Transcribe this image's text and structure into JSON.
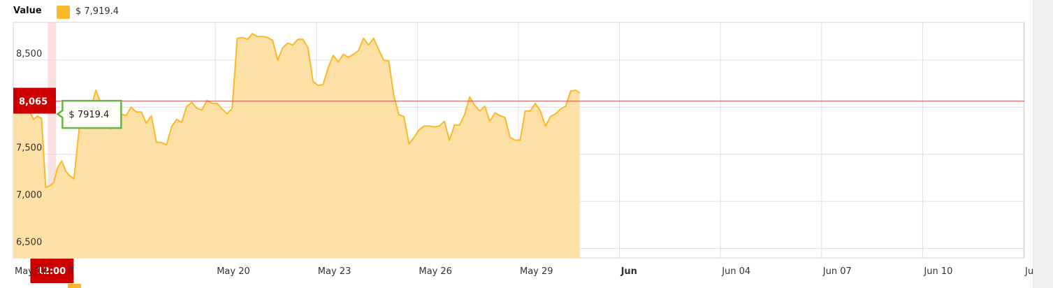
{
  "legend": {
    "title": "Value",
    "value_text": "$ 7,919.4",
    "color": "#fbb829"
  },
  "crosshair": {
    "date_label": "12:00",
    "date_label_trailing": "7",
    "value_label": "8,065",
    "value": 8065,
    "tooltip": "$ 7919.4",
    "tooltip_value": 7919.4,
    "day_index": 1.15
  },
  "colors": {
    "line": "#fbb829",
    "area": "#fde0a6",
    "crosshair_red": "#cc0000",
    "tooltip_border": "#6ab04c",
    "grid": "#e0e0e0"
  },
  "chart_data": {
    "type": "area",
    "title": "",
    "xlabel": "",
    "ylabel": "",
    "ylim": [
      6400,
      8900
    ],
    "y_ticks": [
      {
        "v": 6500,
        "label": "6,500"
      },
      {
        "v": 7000,
        "label": "7,000"
      },
      {
        "v": 7500,
        "label": "7,500"
      },
      {
        "v": 8500,
        "label": "8,500"
      }
    ],
    "x_ticks": [
      {
        "d": 0,
        "label": "May 14",
        "bold": false
      },
      {
        "d": 6,
        "label": "May 20",
        "bold": false
      },
      {
        "d": 9,
        "label": "May 23",
        "bold": false
      },
      {
        "d": 12,
        "label": "May 26",
        "bold": false
      },
      {
        "d": 15,
        "label": "May 29",
        "bold": false
      },
      {
        "d": 18,
        "label": "Jun",
        "bold": true
      },
      {
        "d": 21,
        "label": "Jun 04",
        "bold": false
      },
      {
        "d": 24,
        "label": "Jun 07",
        "bold": false
      },
      {
        "d": 27,
        "label": "Jun 10",
        "bold": false
      },
      {
        "d": 30,
        "label": "Ju",
        "bold": false
      }
    ],
    "x_start": "May 14",
    "xlim_days": [
      0,
      30.05
    ],
    "series": [
      {
        "values": [
          [
            0.0,
            7950
          ],
          [
            0.12,
            7950
          ],
          [
            0.25,
            8035
          ],
          [
            0.36,
            8090
          ],
          [
            0.48,
            7960
          ],
          [
            0.6,
            7870
          ],
          [
            0.72,
            7905
          ],
          [
            0.84,
            7880
          ],
          [
            0.96,
            7150
          ],
          [
            1.08,
            7165
          ],
          [
            1.2,
            7200
          ],
          [
            1.32,
            7360
          ],
          [
            1.44,
            7430
          ],
          [
            1.56,
            7320
          ],
          [
            1.68,
            7270
          ],
          [
            1.8,
            7240
          ],
          [
            2.0,
            7920
          ],
          [
            2.15,
            8000
          ],
          [
            2.3,
            7980
          ],
          [
            2.45,
            8180
          ],
          [
            2.6,
            8040
          ],
          [
            2.75,
            7870
          ],
          [
            2.9,
            7770
          ],
          [
            3.05,
            8000
          ],
          [
            3.2,
            7930
          ],
          [
            3.35,
            7910
          ],
          [
            3.5,
            8000
          ],
          [
            3.65,
            7950
          ],
          [
            3.8,
            7950
          ],
          [
            3.95,
            7830
          ],
          [
            4.1,
            7910
          ],
          [
            4.25,
            7630
          ],
          [
            4.4,
            7625
          ],
          [
            4.55,
            7600
          ],
          [
            4.7,
            7790
          ],
          [
            4.85,
            7870
          ],
          [
            5.0,
            7840
          ],
          [
            5.15,
            8010
          ],
          [
            5.3,
            8050
          ],
          [
            5.45,
            7990
          ],
          [
            5.6,
            7970
          ],
          [
            5.75,
            8070
          ],
          [
            5.9,
            8040
          ],
          [
            6.05,
            8040
          ],
          [
            6.2,
            7980
          ],
          [
            6.35,
            7930
          ],
          [
            6.5,
            7990
          ],
          [
            6.65,
            8730
          ],
          [
            6.8,
            8740
          ],
          [
            6.95,
            8720
          ],
          [
            7.1,
            8780
          ],
          [
            7.25,
            8750
          ],
          [
            7.4,
            8750
          ],
          [
            7.55,
            8740
          ],
          [
            7.7,
            8710
          ],
          [
            7.85,
            8500
          ],
          [
            8.0,
            8630
          ],
          [
            8.15,
            8680
          ],
          [
            8.3,
            8660
          ],
          [
            8.45,
            8720
          ],
          [
            8.6,
            8720
          ],
          [
            8.75,
            8630
          ],
          [
            8.9,
            8275
          ],
          [
            9.05,
            8230
          ],
          [
            9.2,
            8240
          ],
          [
            9.35,
            8420
          ],
          [
            9.5,
            8550
          ],
          [
            9.65,
            8480
          ],
          [
            9.8,
            8560
          ],
          [
            9.95,
            8530
          ],
          [
            10.1,
            8560
          ],
          [
            10.25,
            8600
          ],
          [
            10.4,
            8730
          ],
          [
            10.55,
            8660
          ],
          [
            10.7,
            8730
          ],
          [
            10.85,
            8610
          ],
          [
            11.0,
            8500
          ],
          [
            11.15,
            8490
          ],
          [
            11.3,
            8120
          ],
          [
            11.45,
            7920
          ],
          [
            11.6,
            7900
          ],
          [
            11.75,
            7610
          ],
          [
            11.9,
            7680
          ],
          [
            12.05,
            7760
          ],
          [
            12.2,
            7800
          ],
          [
            12.35,
            7800
          ],
          [
            12.5,
            7790
          ],
          [
            12.65,
            7800
          ],
          [
            12.8,
            7850
          ],
          [
            12.95,
            7650
          ],
          [
            13.1,
            7810
          ],
          [
            13.25,
            7810
          ],
          [
            13.4,
            7920
          ],
          [
            13.55,
            8110
          ],
          [
            13.7,
            8020
          ],
          [
            13.85,
            7960
          ],
          [
            14.0,
            8010
          ],
          [
            14.15,
            7850
          ],
          [
            14.3,
            7940
          ],
          [
            14.45,
            7910
          ],
          [
            14.6,
            7890
          ],
          [
            14.75,
            7680
          ],
          [
            14.9,
            7650
          ],
          [
            15.05,
            7650
          ],
          [
            15.2,
            7960
          ],
          [
            15.35,
            7960
          ],
          [
            15.5,
            8040
          ],
          [
            15.65,
            7960
          ],
          [
            15.8,
            7800
          ],
          [
            15.95,
            7900
          ],
          [
            16.1,
            7930
          ],
          [
            16.25,
            7980
          ],
          [
            16.4,
            8010
          ],
          [
            16.55,
            8170
          ],
          [
            16.7,
            8180
          ],
          [
            16.82,
            8150
          ]
        ]
      }
    ]
  }
}
